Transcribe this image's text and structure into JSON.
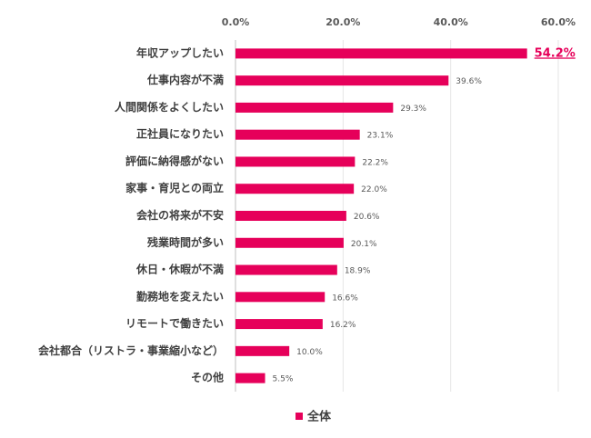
{
  "chart_data": {
    "type": "bar",
    "orientation": "horizontal",
    "categories": [
      "年収アップしたい",
      "仕事内容が不満",
      "人間関係をよくしたい",
      "正社員になりたい",
      "評価に納得感がない",
      "家事・育児との両立",
      "会社の将来が不安",
      "残業時間が多い",
      "休日・休暇が不満",
      "勤務地を変えたい",
      "リモートで働きたい",
      "会社都合（リストラ・事業縮小など）",
      "その他"
    ],
    "series": [
      {
        "name": "全体",
        "color": "#e6005a",
        "values": [
          54.2,
          39.6,
          29.3,
          23.1,
          22.2,
          22.0,
          20.6,
          20.1,
          18.9,
          16.6,
          16.2,
          10.0,
          5.5
        ],
        "value_labels": [
          "54.2%",
          "39.6%",
          "29.3%",
          "23.1%",
          "22.2%",
          "22.0%",
          "20.6%",
          "20.1%",
          "18.9%",
          "16.6%",
          "16.2%",
          "10.0%",
          "5.5%"
        ]
      }
    ],
    "xlim": [
      0,
      60
    ],
    "xticks": [
      {
        "value": 0,
        "label": "0.0%"
      },
      {
        "value": 20,
        "label": "20.0%"
      },
      {
        "value": 40,
        "label": "40.0%"
      },
      {
        "value": 60,
        "label": "60.0%"
      }
    ],
    "grid": true,
    "legend": "bottom"
  }
}
